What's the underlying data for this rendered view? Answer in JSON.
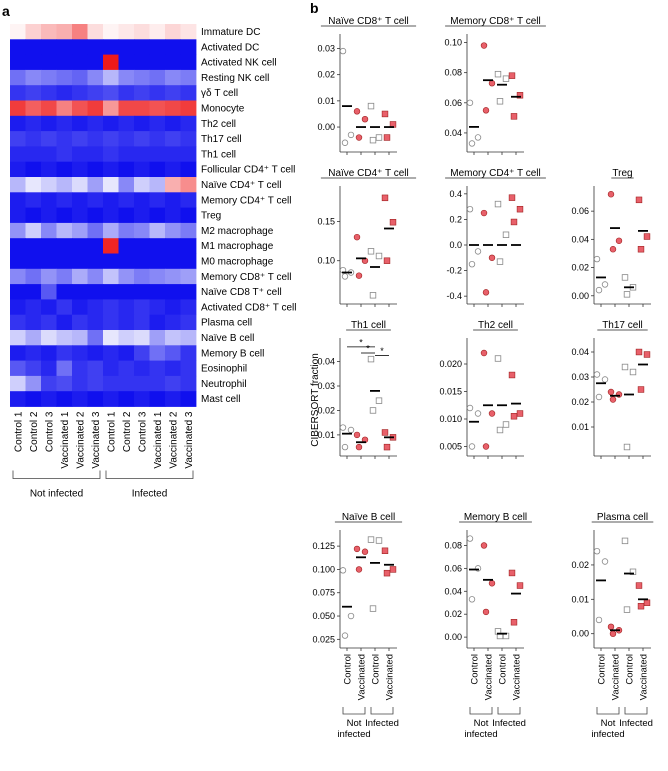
{
  "panel_a_label": "a",
  "panel_b_label": "b",
  "colors": {
    "low": "#1010ee",
    "mid": "#ffffff",
    "high": "#ee1a1a",
    "ctrl_stroke": "#888888",
    "vacc_fill": "#e8606a",
    "vacc_stroke": "#a02020"
  },
  "heatmap": {
    "rows": [
      "Immature DC",
      "Activated DC",
      "Activated NK cell",
      "Resting NK cell",
      "γδ T cell",
      "Monocyte",
      "Th2 cell",
      "Th17 cell",
      "Th1 cell",
      "Follicular CD4⁺ T cell",
      "Naïve CD4⁺ T cell",
      "Memory CD4⁺ T cell",
      "Treg",
      "M2 macrophage",
      "M1 macrophage",
      "M0 macrophage",
      "Memory CD8⁺ T cell",
      "Naïve CD8 T⁺ cell",
      "Activated CD8⁺ T cell",
      "Plasma cell",
      "Naïve B cell",
      "Memory B cell",
      "Eosinophil",
      "Neutrophil",
      "Mast cell"
    ],
    "columns": [
      "Control 1",
      "Control 2",
      "Control 3",
      "Vaccinated 1",
      "Vaccinated 2",
      "Vaccinated 3",
      "Control 1",
      "Control 2",
      "Control 3",
      "Vaccinated 1",
      "Vaccinated 2",
      "Vaccinated 3"
    ],
    "values": [
      [
        0.05,
        0.2,
        0.3,
        0.35,
        0.55,
        0.15,
        0.05,
        0.1,
        0.15,
        0.08,
        0.18,
        0.12
      ],
      [
        -1,
        -1,
        -1,
        -1,
        -1,
        -1,
        -1,
        -1,
        -1,
        -1,
        -1,
        -1
      ],
      [
        -1,
        -1,
        -1,
        -1,
        -1,
        -1,
        1.0,
        -1,
        -1,
        -1,
        -1,
        -1
      ],
      [
        -0.6,
        -0.5,
        -0.55,
        -0.6,
        -0.65,
        -0.5,
        -0.3,
        -0.5,
        -0.55,
        -0.6,
        -0.5,
        -0.55
      ],
      [
        -0.85,
        -0.8,
        -0.85,
        -0.9,
        -0.85,
        -0.8,
        -0.75,
        -0.85,
        -0.8,
        -0.85,
        -0.8,
        -0.85
      ],
      [
        0.85,
        0.7,
        0.8,
        0.55,
        0.75,
        0.85,
        0.45,
        0.8,
        0.8,
        0.75,
        0.8,
        0.85
      ],
      [
        -0.95,
        -0.9,
        -0.95,
        -0.9,
        -0.95,
        -0.9,
        -0.95,
        -0.9,
        -0.95,
        -0.9,
        -0.95,
        -0.9
      ],
      [
        -0.8,
        -0.85,
        -0.8,
        -0.85,
        -0.8,
        -0.85,
        -0.8,
        -0.85,
        -0.8,
        -0.85,
        -0.8,
        -0.85
      ],
      [
        -0.9,
        -0.9,
        -0.9,
        -0.85,
        -0.9,
        -0.9,
        -0.85,
        -0.9,
        -0.9,
        -0.9,
        -0.9,
        -0.9
      ],
      [
        -0.95,
        -1,
        -0.95,
        -1,
        -0.95,
        -1,
        -0.95,
        -1,
        -0.95,
        -1,
        -0.95,
        -1
      ],
      [
        -0.3,
        -0.1,
        -0.2,
        -0.3,
        -0.15,
        -0.4,
        -0.1,
        -0.5,
        -0.2,
        -0.3,
        0.35,
        0.5
      ],
      [
        -0.95,
        -0.9,
        -0.95,
        -0.9,
        -0.95,
        -0.9,
        -0.95,
        -0.9,
        -0.95,
        -0.9,
        -0.95,
        -0.9
      ],
      [
        -0.95,
        -1,
        -0.95,
        -1,
        -0.95,
        -1,
        -0.95,
        -1,
        -0.95,
        -1,
        -0.95,
        -1
      ],
      [
        -0.45,
        -0.2,
        -0.5,
        -0.3,
        -0.4,
        -0.6,
        -0.35,
        -0.55,
        -0.5,
        -0.3,
        -0.45,
        -0.55
      ],
      [
        -1,
        -1,
        -1,
        -1,
        -1,
        -1,
        0.95,
        -1,
        -1,
        -1,
        -1,
        -1
      ],
      [
        -1,
        -1,
        -1,
        -1,
        -1,
        -1,
        -1,
        -1,
        -1,
        -1,
        -1,
        -1
      ],
      [
        -0.5,
        -0.6,
        -0.45,
        -0.55,
        -0.35,
        -0.5,
        -0.25,
        -0.45,
        -0.55,
        -0.5,
        -0.45,
        -0.4
      ],
      [
        -1,
        -1,
        -0.7,
        -1,
        -1,
        -1,
        -1,
        -1,
        -1,
        -1,
        -1,
        -1
      ],
      [
        -0.95,
        -0.9,
        -0.95,
        -0.85,
        -0.95,
        -0.9,
        -0.85,
        -0.9,
        -0.85,
        -0.9,
        -0.95,
        -0.9
      ],
      [
        -0.85,
        -0.9,
        -0.85,
        -0.95,
        -0.85,
        -0.9,
        -0.85,
        -0.9,
        -0.85,
        -0.95,
        -0.9,
        -0.85
      ],
      [
        -0.2,
        -0.35,
        -0.15,
        -0.25,
        -0.3,
        -0.6,
        -0.1,
        -0.2,
        -0.15,
        -0.4,
        -0.25,
        -0.3
      ],
      [
        -0.95,
        -0.9,
        -0.95,
        -0.85,
        -0.9,
        -0.95,
        -0.9,
        -0.95,
        -0.8,
        -0.6,
        -0.7,
        -0.85
      ],
      [
        -0.7,
        -0.8,
        -0.9,
        -0.6,
        -0.85,
        -0.8,
        -0.9,
        -0.85,
        -0.9,
        -0.85,
        -0.9,
        -0.85
      ],
      [
        -0.2,
        -0.45,
        -0.8,
        -0.75,
        -0.85,
        -0.8,
        -0.85,
        -0.85,
        -0.85,
        -0.85,
        -0.8,
        -0.85
      ],
      [
        -0.95,
        -1,
        -0.95,
        -1,
        -0.95,
        -1,
        -0.95,
        -1,
        -0.95,
        -1,
        -0.95,
        -1
      ]
    ],
    "group_labels": [
      "Not infected",
      "Infected"
    ]
  },
  "y_axis_label": "CIBERSORT fraction",
  "group_axis": {
    "ticks": [
      "Control",
      "Vaccinated",
      "Control",
      "Vaccinated"
    ],
    "groups": [
      "Not\ninfected",
      "Infected"
    ]
  },
  "chart_data": [
    {
      "type": "scatter",
      "title": "Naïve CD8⁺ T cell",
      "yticks": [
        0.0,
        0.01,
        0.02,
        0.03
      ],
      "ylim": [
        -0.008,
        0.034
      ],
      "tick_fmt": 2,
      "groups": [
        {
          "kind": "control",
          "values": [
            0.029,
            -0.003,
            -0.006
          ],
          "mean": 0.008
        },
        {
          "kind": "vacc",
          "values": [
            0.006,
            0.003,
            -0.004
          ],
          "mean": 0.0
        },
        {
          "kind": "control",
          "values": [
            0.008,
            -0.004,
            -0.005
          ],
          "mean": 0.0
        },
        {
          "kind": "vacc",
          "values": [
            0.005,
            0.001,
            -0.004
          ],
          "mean": 0.0
        }
      ]
    },
    {
      "type": "scatter",
      "title": "Memory CD8⁺ T cell",
      "yticks": [
        0.04,
        0.06,
        0.08,
        0.1
      ],
      "ylim": [
        0.03,
        0.103
      ],
      "tick_fmt": 2,
      "groups": [
        {
          "kind": "control",
          "values": [
            0.06,
            0.037,
            0.033
          ],
          "mean": 0.044
        },
        {
          "kind": "vacc",
          "values": [
            0.098,
            0.073,
            0.055
          ],
          "mean": 0.075
        },
        {
          "kind": "control",
          "values": [
            0.079,
            0.076,
            0.061
          ],
          "mean": 0.072
        },
        {
          "kind": "vacc",
          "values": [
            0.078,
            0.065,
            0.051
          ],
          "mean": 0.064
        }
      ]
    },
    {
      "type": "scatter",
      "title": "Naïve CD4⁺ T cell",
      "yticks": [
        0.1,
        0.15
      ],
      "ylim": [
        0.05,
        0.19
      ],
      "tick_fmt": 2,
      "groups": [
        {
          "kind": "control",
          "values": [
            0.088,
            0.085,
            0.08
          ],
          "mean": 0.085
        },
        {
          "kind": "vacc",
          "values": [
            0.13,
            0.1,
            0.081
          ],
          "mean": 0.103
        },
        {
          "kind": "control",
          "values": [
            0.112,
            0.106,
            0.056
          ],
          "mean": 0.092
        },
        {
          "kind": "vacc",
          "values": [
            0.18,
            0.149,
            0.1
          ],
          "mean": 0.141
        }
      ]
    },
    {
      "type": "scatter",
      "title": "Memory CD4⁺ T cell",
      "yticks": [
        -0.4,
        -0.2,
        0.0,
        0.2,
        0.4
      ],
      "ylim": [
        -0.43,
        0.43
      ],
      "tick_fmt": 1,
      "groups": [
        {
          "kind": "control",
          "values": [
            0.28,
            -0.05,
            -0.15
          ],
          "mean": 0.0
        },
        {
          "kind": "vacc",
          "values": [
            0.25,
            -0.1,
            -0.37
          ],
          "mean": 0.0
        },
        {
          "kind": "control",
          "values": [
            0.32,
            0.08,
            -0.13
          ],
          "mean": 0.0
        },
        {
          "kind": "vacc",
          "values": [
            0.37,
            0.28,
            0.18
          ],
          "mean": 0.0
        }
      ]
    },
    {
      "type": "scatter",
      "title": "Treg",
      "yticks": [
        0.0,
        0.02,
        0.04,
        0.06
      ],
      "ylim": [
        -0.003,
        0.075
      ],
      "tick_fmt": 2,
      "groups": [
        {
          "kind": "control",
          "values": [
            0.026,
            0.008,
            0.004
          ],
          "mean": 0.013
        },
        {
          "kind": "vacc",
          "values": [
            0.072,
            0.039,
            0.033
          ],
          "mean": 0.048
        },
        {
          "kind": "control",
          "values": [
            0.013,
            0.006,
            0.001
          ],
          "mean": 0.006
        },
        {
          "kind": "vacc",
          "values": [
            0.068,
            0.042,
            0.033
          ],
          "mean": 0.046
        }
      ]
    },
    {
      "type": "scatter",
      "title": "Th1 cell",
      "yticks": [
        0.01,
        0.02,
        0.03,
        0.04
      ],
      "ylim": [
        0.003,
        0.048
      ],
      "tick_fmt": 2,
      "groups": [
        {
          "kind": "control",
          "values": [
            0.013,
            0.012,
            0.005
          ],
          "mean": 0.0105
        },
        {
          "kind": "vacc",
          "values": [
            0.01,
            0.008,
            0.005
          ],
          "mean": 0.007
        },
        {
          "kind": "control",
          "values": [
            0.041,
            0.024,
            0.02
          ],
          "mean": 0.028
        },
        {
          "kind": "vacc",
          "values": [
            0.011,
            0.009,
            0.005
          ],
          "mean": 0.009
        }
      ],
      "significance": [
        {
          "from": 0,
          "to": 2,
          "label": "*",
          "level": 0.046
        },
        {
          "from": 1,
          "to": 2,
          "label": "*",
          "level": 0.0435
        },
        {
          "from": 2,
          "to": 3,
          "label": "*",
          "level": 0.0425
        }
      ]
    },
    {
      "type": "scatter",
      "title": "Th2 cell",
      "yticks": [
        0.005,
        0.01,
        0.015,
        0.02
      ],
      "ylim": [
        0.004,
        0.024
      ],
      "tick_fmt": 3,
      "groups": [
        {
          "kind": "control",
          "values": [
            0.012,
            0.011,
            0.005
          ],
          "mean": 0.0095
        },
        {
          "kind": "vacc",
          "values": [
            0.022,
            0.011,
            0.005
          ],
          "mean": 0.0125
        },
        {
          "kind": "control",
          "values": [
            0.021,
            0.009,
            0.008
          ],
          "mean": 0.0125
        },
        {
          "kind": "vacc",
          "values": [
            0.018,
            0.011,
            0.0105
          ],
          "mean": 0.0128
        }
      ]
    },
    {
      "type": "scatter",
      "title": "Th17 cell",
      "yticks": [
        0.01,
        0.02,
        0.03,
        0.04
      ],
      "ylim": [
        0.0,
        0.044
      ],
      "tick_fmt": 2,
      "groups": [
        {
          "kind": "control",
          "values": [
            0.031,
            0.029,
            0.022
          ],
          "mean": 0.0275
        },
        {
          "kind": "vacc",
          "values": [
            0.024,
            0.023,
            0.021
          ],
          "mean": 0.0225
        },
        {
          "kind": "control",
          "values": [
            0.034,
            0.032,
            0.002
          ],
          "mean": 0.023
        },
        {
          "kind": "vacc",
          "values": [
            0.04,
            0.039,
            0.025
          ],
          "mean": 0.035
        }
      ]
    },
    {
      "type": "scatter",
      "title": "Naïve B cell",
      "yticks": [
        0.025,
        0.05,
        0.075,
        0.1,
        0.125
      ],
      "ylim": [
        0.02,
        0.138
      ],
      "tick_fmt": 3,
      "groups": [
        {
          "kind": "control",
          "values": [
            0.099,
            0.05,
            0.029
          ],
          "mean": 0.06
        },
        {
          "kind": "vacc",
          "values": [
            0.122,
            0.119,
            0.1
          ],
          "mean": 0.113
        },
        {
          "kind": "control",
          "values": [
            0.132,
            0.131,
            0.058
          ],
          "mean": 0.107
        },
        {
          "kind": "vacc",
          "values": [
            0.12,
            0.1,
            0.096
          ],
          "mean": 0.105
        }
      ]
    },
    {
      "type": "scatter",
      "title": "Memory B cell",
      "yticks": [
        0.0,
        0.02,
        0.04,
        0.06,
        0.08
      ],
      "ylim": [
        -0.006,
        0.09
      ],
      "tick_fmt": 2,
      "groups": [
        {
          "kind": "control",
          "values": [
            0.086,
            0.06,
            0.033
          ],
          "mean": 0.059
        },
        {
          "kind": "vacc",
          "values": [
            0.08,
            0.047,
            0.022
          ],
          "mean": 0.05
        },
        {
          "kind": "control",
          "values": [
            0.005,
            0.001,
            0.001
          ],
          "mean": 0.003
        },
        {
          "kind": "vacc",
          "values": [
            0.056,
            0.045,
            0.013
          ],
          "mean": 0.038
        }
      ]
    },
    {
      "type": "scatter",
      "title": "Plasma cell",
      "yticks": [
        0.0,
        0.01,
        0.02
      ],
      "ylim": [
        -0.003,
        0.029
      ],
      "tick_fmt": 2,
      "groups": [
        {
          "kind": "control",
          "values": [
            0.024,
            0.021,
            0.004
          ],
          "mean": 0.0155
        },
        {
          "kind": "vacc",
          "values": [
            0.002,
            0.001,
            0.0
          ],
          "mean": 0.001
        },
        {
          "kind": "control",
          "values": [
            0.027,
            0.018,
            0.007
          ],
          "mean": 0.0175
        },
        {
          "kind": "vacc",
          "values": [
            0.014,
            0.009,
            0.008
          ],
          "mean": 0.01
        }
      ]
    }
  ]
}
